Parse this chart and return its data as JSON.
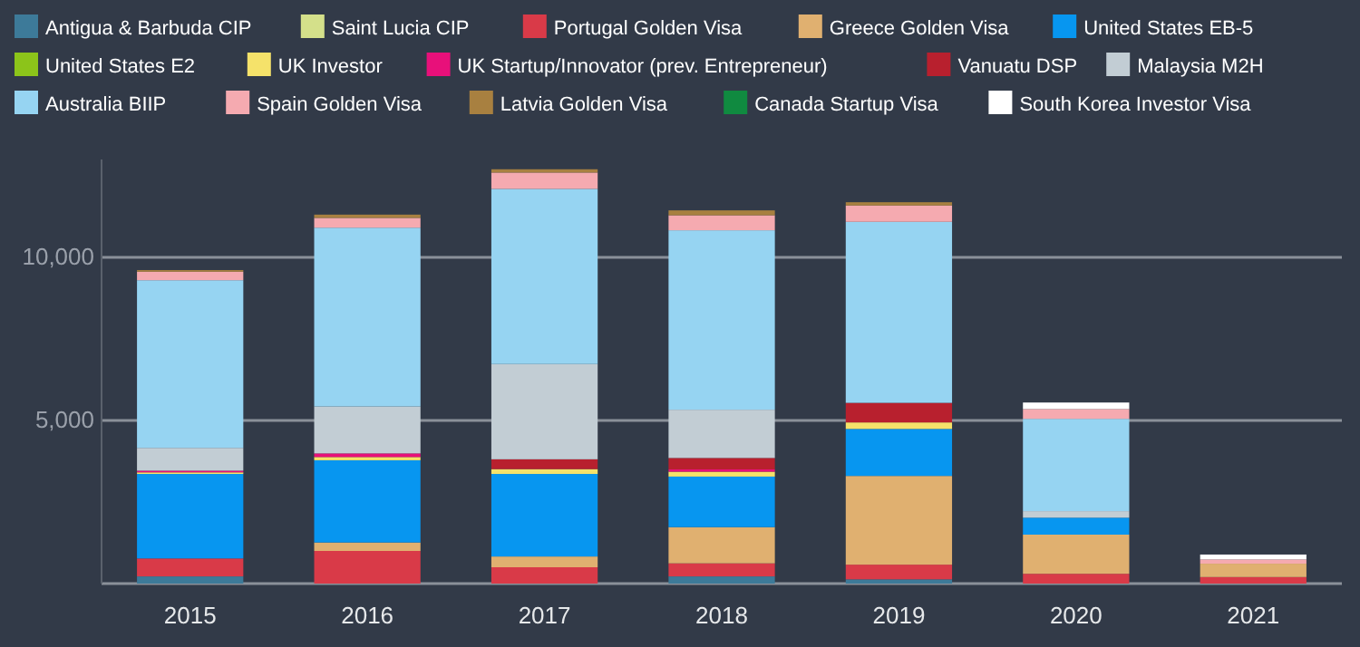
{
  "chart_data": {
    "type": "bar",
    "stacked": true,
    "categories": [
      "2015",
      "2016",
      "2017",
      "2018",
      "2019",
      "2020",
      "2021"
    ],
    "series": [
      {
        "name": "Antigua & Barbuda CIP",
        "color": "#3d7a99",
        "values": [
          220,
          null,
          null,
          220,
          130,
          null,
          null
        ]
      },
      {
        "name": "Saint Lucia CIP",
        "color": "#d4e08a",
        "values": [
          null,
          null,
          null,
          null,
          null,
          null,
          null
        ]
      },
      {
        "name": "Portugal Golden Visa",
        "color": "#d93a48",
        "values": [
          550,
          1000,
          500,
          400,
          450,
          300,
          200
        ]
      },
      {
        "name": "Greece Golden Visa",
        "color": "#e0b070",
        "values": [
          null,
          260,
          330,
          1110,
          2720,
          1200,
          410
        ]
      },
      {
        "name": "United States EB-5",
        "color": "#0796f0",
        "values": [
          2590,
          2520,
          2530,
          1550,
          1440,
          520,
          null
        ]
      },
      {
        "name": "United States E2",
        "color": "#8cc41a",
        "values": [
          null,
          null,
          null,
          null,
          null,
          null,
          null
        ]
      },
      {
        "name": "UK Investor",
        "color": "#f5e26a",
        "values": [
          50,
          100,
          150,
          150,
          200,
          null,
          null
        ]
      },
      {
        "name": "UK Startup/Innovator (prev. Entrepreneur)",
        "color": "#e8107a",
        "values": [
          50,
          110,
          null,
          70,
          null,
          null,
          null
        ]
      },
      {
        "name": "Vanuatu DSP",
        "color": "#b8202e",
        "values": [
          null,
          null,
          300,
          350,
          600,
          null,
          null
        ]
      },
      {
        "name": "Malaysia M2H",
        "color": "#c2cdd4",
        "values": [
          700,
          1440,
          2920,
          1480,
          null,
          200,
          null
        ]
      },
      {
        "name": "Australia BIIP",
        "color": "#96d4f2",
        "values": [
          5140,
          5480,
          5370,
          5500,
          5550,
          2830,
          null
        ]
      },
      {
        "name": "Spain Golden Visa",
        "color": "#f5aab0",
        "values": [
          260,
          300,
          500,
          460,
          500,
          300,
          130
        ]
      },
      {
        "name": "Latvia Golden Visa",
        "color": "#a88040",
        "values": [
          50,
          100,
          100,
          150,
          100,
          null,
          null
        ]
      },
      {
        "name": "Canada Startup Visa",
        "color": "#108a40",
        "values": [
          null,
          null,
          null,
          null,
          null,
          null,
          null
        ]
      },
      {
        "name": "South Korea Investor Visa",
        "color": "#ffffff",
        "values": [
          null,
          null,
          null,
          null,
          null,
          200,
          150
        ]
      }
    ],
    "ylim": [
      0,
      13000
    ],
    "yticks": [
      {
        "value": 0,
        "label": null
      },
      {
        "value": 5000,
        "label": "5,000"
      },
      {
        "value": 10000,
        "label": "10,000"
      }
    ],
    "grid": "y",
    "legend": "top"
  }
}
